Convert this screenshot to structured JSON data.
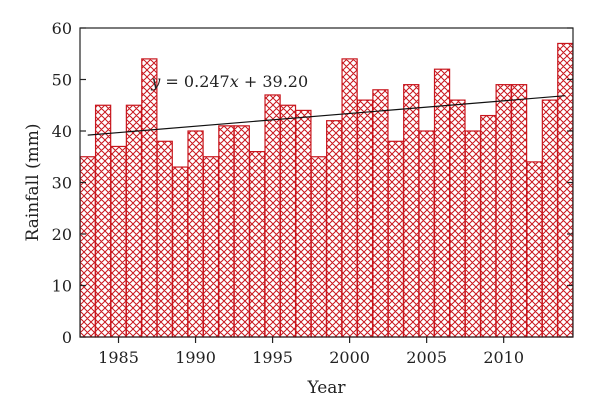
{
  "chart_data": {
    "type": "bar",
    "title": "",
    "xlabel": "Year",
    "ylabel": "Rainfall (mm)",
    "x": [
      1983,
      1984,
      1985,
      1986,
      1987,
      1988,
      1989,
      1990,
      1991,
      1992,
      1993,
      1994,
      1995,
      1996,
      1997,
      1998,
      1999,
      2000,
      2001,
      2002,
      2003,
      2004,
      2005,
      2006,
      2007,
      2008,
      2009,
      2010,
      2011,
      2012,
      2013,
      2014
    ],
    "values": [
      35,
      45,
      37,
      45,
      54,
      38,
      33,
      40,
      35,
      41,
      41,
      36,
      47,
      45,
      44,
      35,
      42,
      54,
      46,
      48,
      38,
      49,
      40,
      52,
      46,
      40,
      43,
      49,
      49,
      34,
      46,
      57
    ],
    "xlim": [
      1982.5,
      2014.5
    ],
    "ylim": [
      0,
      60
    ],
    "xticks": [
      1985,
      1990,
      1995,
      2000,
      2005,
      2010
    ],
    "yticks": [
      0,
      10,
      20,
      30,
      40,
      50,
      60
    ],
    "grid": false,
    "legend": "none",
    "bar_style": {
      "fill": "crosshatch",
      "color": "#c8161d"
    },
    "trendline": {
      "slope": 0.247,
      "intercept": 39.2,
      "equation_parts": [
        "y",
        " = 0.247",
        "x",
        " + 39.20"
      ],
      "color": "#111111"
    }
  }
}
